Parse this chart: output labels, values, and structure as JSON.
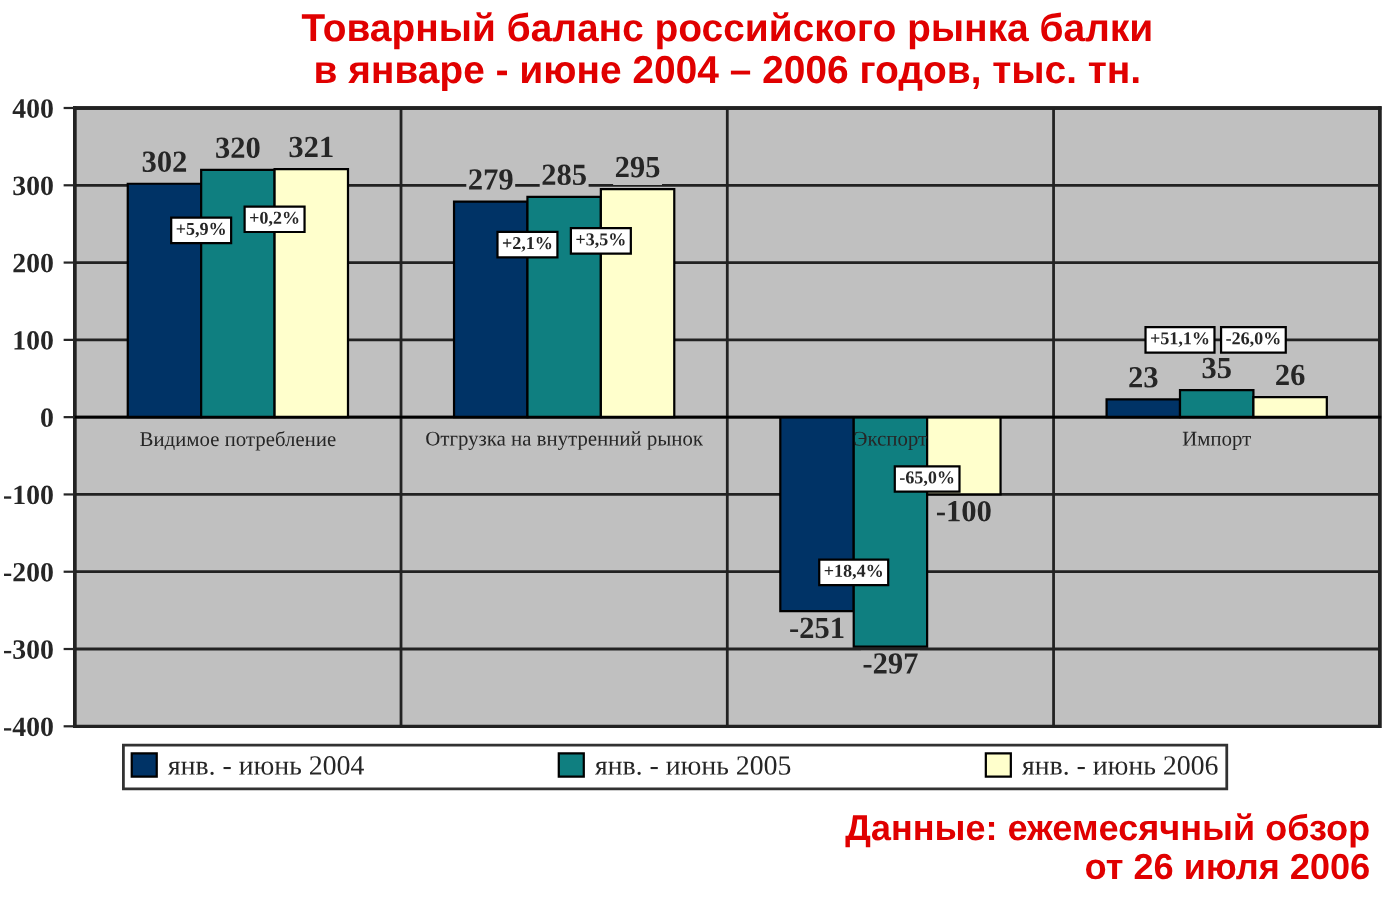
{
  "chart_data": {
    "type": "bar",
    "title": "Товарный баланс российского рынка балки\nв январе - июне 2004 – 2006 годов, тыс. тн.",
    "categories": [
      "Видимое потребление",
      "Отгрузка на внутренний рынок",
      "Экспорт",
      "Импорт"
    ],
    "series": [
      {
        "name": "янв. - июнь 2004",
        "color": "#003366",
        "values": [
          302,
          279,
          -251,
          23
        ]
      },
      {
        "name": "янв. - июнь 2005",
        "color": "#0f7f80",
        "values": [
          320,
          285,
          -297,
          35
        ]
      },
      {
        "name": "янв. - июнь 2006",
        "color": "#ffffcc",
        "values": [
          321,
          295,
          -100,
          26
        ]
      }
    ],
    "ylim": [
      -400,
      400
    ],
    "yticks": [
      -400,
      -300,
      -200,
      -100,
      0,
      100,
      200,
      300,
      400
    ],
    "grid": true,
    "legend": "bottom",
    "data_labels": true,
    "annotations": [
      "+5,9%",
      "+0,2%",
      "+2,1%",
      "+3,5%",
      "+18,4%",
      "-65,0%",
      "+51,1%",
      "-26,0%",
      "Данные: ежемесячный обзор\nот 26 июля 2006"
    ]
  }
}
